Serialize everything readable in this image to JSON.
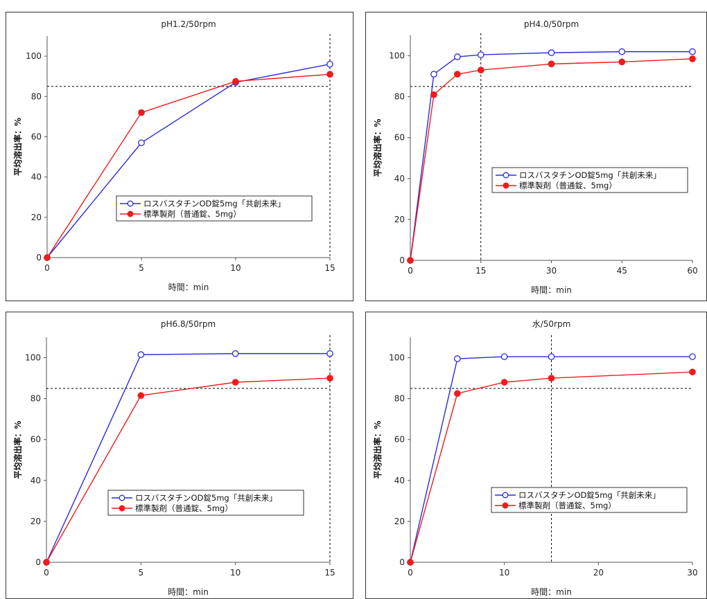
{
  "colors": {
    "series_a": "#2b2bd9",
    "series_b": "#ee1c1c",
    "frame": "#333333",
    "reference": "#000000"
  },
  "chart_data": [
    {
      "type": "line",
      "title": "pH1.2/50rpm",
      "xlabel": "時間：min",
      "ylabel": "平均溶出率：%",
      "xlim": [
        0,
        15
      ],
      "ylim": [
        0,
        110
      ],
      "xticks": [
        0,
        5,
        10,
        15
      ],
      "yticks": [
        0,
        20,
        40,
        60,
        80,
        100
      ],
      "x": [
        0,
        5,
        10,
        15
      ],
      "series": [
        {
          "name": "ロスバスタチンOD錠5mg「共創未来」",
          "marker": "open-circle",
          "values": [
            0,
            57,
            87,
            96
          ]
        },
        {
          "name": "標準製剤（普通錠、5mg）",
          "marker": "filled-circle",
          "values": [
            0,
            72,
            87.5,
            91
          ]
        }
      ],
      "reference_lines": {
        "y": 85,
        "x": 15
      },
      "legend": "center-right"
    },
    {
      "type": "line",
      "title": "pH4.0/50rpm",
      "xlabel": "時間：min",
      "ylabel": "平均溶出率：%",
      "xlim": [
        0,
        60
      ],
      "ylim": [
        0,
        110
      ],
      "xticks": [
        0,
        15,
        30,
        45,
        60
      ],
      "yticks": [
        0,
        20,
        40,
        60,
        80,
        100
      ],
      "x": [
        0,
        5,
        10,
        15,
        30,
        45,
        60
      ],
      "series": [
        {
          "name": "ロスバスタチンOD錠5mg「共創未来」",
          "marker": "open-circle",
          "values": [
            0,
            91,
            99.5,
            100.5,
            101.5,
            102,
            102
          ]
        },
        {
          "name": "標準製剤（普通錠、5mg）",
          "marker": "filled-circle",
          "values": [
            0,
            81,
            91,
            93,
            96,
            97,
            98.5
          ]
        }
      ],
      "reference_lines": {
        "y": 85,
        "x": 15
      },
      "legend": "center-right"
    },
    {
      "type": "line",
      "title": "pH6.8/50rpm",
      "xlabel": "時間：min",
      "ylabel": "平均溶出率：%",
      "xlim": [
        0,
        15
      ],
      "ylim": [
        0,
        110
      ],
      "xticks": [
        0,
        5,
        10,
        15
      ],
      "yticks": [
        0,
        20,
        40,
        60,
        80,
        100
      ],
      "x": [
        0,
        5,
        10,
        15
      ],
      "series": [
        {
          "name": "ロスバスタチンOD錠5mg「共創未来」",
          "marker": "open-circle",
          "values": [
            0,
            101.5,
            102,
            102
          ]
        },
        {
          "name": "標準製剤（普通錠、5mg）",
          "marker": "filled-circle",
          "values": [
            0,
            81.5,
            88,
            90
          ]
        }
      ],
      "reference_lines": {
        "y": 85,
        "x": 15
      },
      "legend": "lower-right"
    },
    {
      "type": "line",
      "title": "水/50rpm",
      "xlabel": "時間：min",
      "ylabel": "平均溶出率：%",
      "xlim": [
        0,
        30
      ],
      "ylim": [
        0,
        110
      ],
      "xticks": [
        0,
        10,
        20,
        30
      ],
      "yticks": [
        0,
        20,
        40,
        60,
        80,
        100
      ],
      "x": [
        0,
        5,
        10,
        15,
        30
      ],
      "series": [
        {
          "name": "ロスバスタチンOD錠5mg「共創未来」",
          "marker": "open-circle",
          "values": [
            0,
            99.5,
            100.5,
            100.5,
            100.5
          ]
        },
        {
          "name": "標準製剤（普通錠、5mg）",
          "marker": "filled-circle",
          "values": [
            0,
            82.5,
            88,
            90,
            93
          ]
        }
      ],
      "reference_lines": {
        "y": 85,
        "x": 15
      },
      "legend": "lower-right"
    }
  ]
}
